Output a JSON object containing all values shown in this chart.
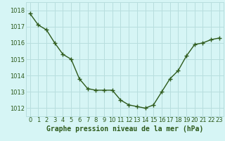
{
  "x": [
    0,
    1,
    2,
    3,
    4,
    5,
    6,
    7,
    8,
    9,
    10,
    11,
    12,
    13,
    14,
    15,
    16,
    17,
    18,
    19,
    20,
    21,
    22,
    23
  ],
  "y": [
    1017.8,
    1017.1,
    1016.8,
    1016.0,
    1015.3,
    1015.0,
    1013.8,
    1013.2,
    1013.1,
    1013.1,
    1013.1,
    1012.5,
    1012.2,
    1012.1,
    1012.0,
    1012.2,
    1013.0,
    1013.8,
    1014.3,
    1015.2,
    1015.9,
    1016.0,
    1016.2,
    1016.3
  ],
  "ylim": [
    1011.5,
    1018.5
  ],
  "yticks": [
    1012,
    1013,
    1014,
    1015,
    1016,
    1017,
    1018
  ],
  "xticks": [
    0,
    1,
    2,
    3,
    4,
    5,
    6,
    7,
    8,
    9,
    10,
    11,
    12,
    13,
    14,
    15,
    16,
    17,
    18,
    19,
    20,
    21,
    22,
    23
  ],
  "line_color": "#2d5a1b",
  "marker": "+",
  "marker_size": 4,
  "bg_color": "#d6f5f5",
  "grid_color": "#b8dede",
  "xlabel": "Graphe pression niveau de la mer (hPa)",
  "xlabel_fontsize": 7,
  "tick_fontsize": 6,
  "line_width": 1.0
}
